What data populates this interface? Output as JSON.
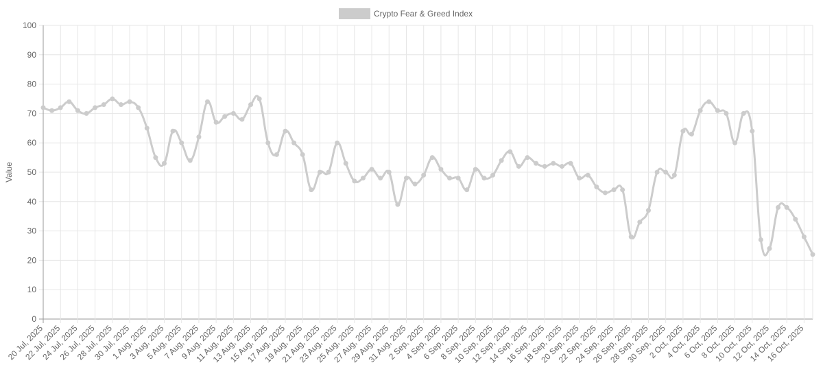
{
  "chart_data": {
    "type": "line",
    "categories": [
      "20 Jul, 2025",
      null,
      "22 Jul, 2025",
      null,
      "24 Jul, 2025",
      null,
      "26 Jul, 2025",
      null,
      "28 Jul, 2025",
      null,
      "30 Jul, 2025",
      null,
      "1 Aug, 2025",
      null,
      "3 Aug, 2025",
      null,
      "5 Aug, 2025",
      null,
      "7 Aug, 2025",
      null,
      "9 Aug, 2025",
      null,
      "11 Aug, 2025",
      null,
      "13 Aug, 2025",
      null,
      "15 Aug, 2025",
      null,
      "17 Aug, 2025",
      null,
      "19 Aug, 2025",
      null,
      "21 Aug, 2025",
      null,
      "23 Aug, 2025",
      null,
      "25 Aug, 2025",
      null,
      "27 Aug, 2025",
      null,
      "29 Aug, 2025",
      null,
      "31 Aug, 2025",
      null,
      "2 Sep, 2025",
      null,
      "4 Sep, 2025",
      null,
      "6 Sep, 2025",
      null,
      "8 Sep, 2025",
      null,
      "10 Sep, 2025",
      null,
      "12 Sep, 2025",
      null,
      "14 Sep, 2025",
      null,
      "16 Sep, 2025",
      null,
      "18 Sep, 2025",
      null,
      "20 Sep, 2025",
      null,
      "22 Sep, 2025",
      null,
      "24 Sep, 2025",
      null,
      "26 Sep, 2025",
      null,
      "28 Sep, 2025",
      null,
      "30 Sep, 2025",
      null,
      "2 Oct, 2025",
      null,
      "4 Oct, 2025",
      null,
      "6 Oct, 2025",
      null,
      "8 Oct, 2025",
      null,
      "10 Oct, 2025",
      null,
      "12 Oct, 2025",
      null,
      "14 Oct, 2025",
      null,
      "16 Oct, 2025",
      null
    ],
    "series": [
      {
        "name": "Crypto Fear & Greed Index",
        "color": "#cccccc",
        "values": [
          72,
          71,
          72,
          74,
          71,
          70,
          72,
          73,
          75,
          73,
          74,
          72,
          65,
          55,
          53,
          64,
          60,
          54,
          62,
          74,
          67,
          69,
          70,
          68,
          73,
          75,
          60,
          56,
          64,
          60,
          56,
          44,
          50,
          50,
          60,
          53,
          47,
          48,
          51,
          48,
          50,
          39,
          48,
          46,
          49,
          55,
          51,
          48,
          48,
          44,
          51,
          48,
          49,
          54,
          57,
          52,
          55,
          53,
          52,
          53,
          52,
          53,
          48,
          49,
          45,
          43,
          44,
          44,
          28,
          33,
          37,
          50,
          50,
          49,
          64,
          63,
          71,
          74,
          71,
          70,
          60,
          70,
          64,
          27,
          24,
          38,
          38,
          34,
          28,
          22
        ]
      }
    ],
    "y_label": "Value",
    "ylim": [
      0,
      100
    ],
    "yticks": [
      0,
      10,
      20,
      30,
      40,
      50,
      60,
      70,
      80,
      90,
      100
    ],
    "grid": true
  }
}
